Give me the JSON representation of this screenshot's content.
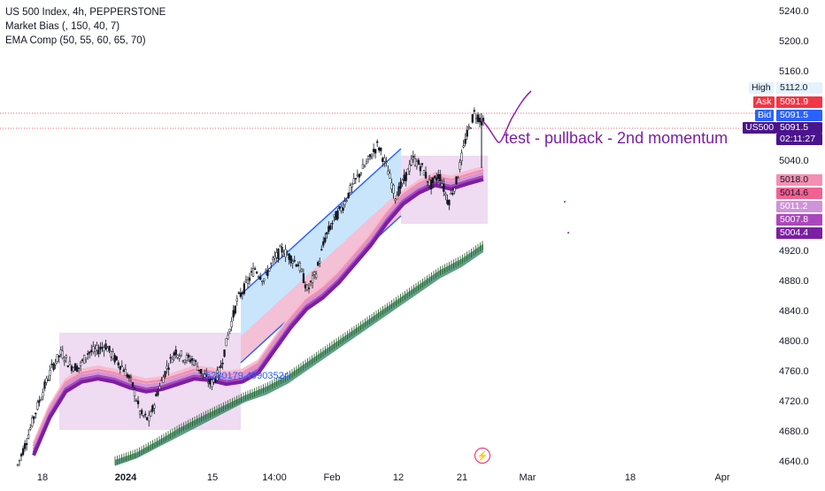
{
  "legend": {
    "title": "US 500 Index, 4h, PEPPERSTONE",
    "indicator1": "Market Bias (, 150, 40, 7)",
    "indicator2": "EMA Comp (50, 55, 60, 65, 70)"
  },
  "annotation": "test - pullback - 2nd momentum",
  "ema_label": "5280179,49903524",
  "colors": {
    "up": "#131722",
    "down": "#131722",
    "ema_main": "#8e24aa",
    "ema_light": "#f48fb1",
    "bias_green": "#2e7d5b",
    "box_fill": "#e1bee7",
    "channel_blue": "#2962ff",
    "channel_red": "#f8bbd0",
    "ask": "#f23645",
    "bid": "#2962ff",
    "purple": "#4a148c"
  },
  "price_tags": {
    "high": {
      "label": "High",
      "value": "5112.0"
    },
    "ask": {
      "label": "Ask",
      "value": "5091.9"
    },
    "bid": {
      "label": "Bid",
      "value": "5091.5"
    },
    "symbol": {
      "label": "US500",
      "value": "5091.5",
      "countdown": "02:11:27"
    },
    "ema_values": [
      "5018.0",
      "5014.6",
      "5011.2",
      "5007.8",
      "5004.4"
    ]
  },
  "logo": "⚡",
  "chart_data": {
    "type": "candlestick",
    "title": "US 500 Index, 4h, PEPPERSTONE",
    "y_ticks": [
      5240.0,
      5200.0,
      5160.0,
      5040.0,
      4920.0,
      4880.0,
      4840.0,
      4800.0,
      4760.0,
      4720.0,
      4680.0,
      4640.0
    ],
    "ylim": [
      4630,
      5255
    ],
    "x_ticks": [
      {
        "label": "18",
        "bold": false
      },
      {
        "label": "2024",
        "bold": true
      },
      {
        "label": "15",
        "bold": false
      },
      {
        "label": "14:00",
        "bold": false
      },
      {
        "label": "Feb",
        "bold": false
      },
      {
        "label": "12",
        "bold": false
      },
      {
        "label": "21",
        "bold": false
      },
      {
        "label": "Mar",
        "bold": false
      },
      {
        "label": "18",
        "bold": false
      },
      {
        "label": "Apr",
        "bold": false
      }
    ],
    "price_path": [
      [
        4630,
        4640
      ],
      [
        4660,
        4675
      ],
      [
        4700,
        4710
      ],
      [
        4730,
        4745
      ],
      [
        4760,
        4775
      ],
      [
        4780,
        4790
      ],
      [
        4765,
        4770
      ],
      [
        4760,
        4770
      ],
      [
        4780,
        4790
      ],
      [
        4785,
        4790
      ],
      [
        4790,
        4800
      ],
      [
        4775,
        4780
      ],
      [
        4760,
        4770
      ],
      [
        4740,
        4750
      ],
      [
        4700,
        4705
      ],
      [
        4690,
        4700
      ],
      [
        4730,
        4740
      ],
      [
        4760,
        4770
      ],
      [
        4780,
        4795
      ],
      [
        4775,
        4780
      ],
      [
        4770,
        4780
      ],
      [
        4755,
        4760
      ],
      [
        4740,
        4745
      ],
      [
        4755,
        4765
      ],
      [
        4800,
        4820
      ],
      [
        4850,
        4860
      ],
      [
        4870,
        4880
      ],
      [
        4890,
        4905
      ],
      [
        4880,
        4885
      ],
      [
        4900,
        4910
      ],
      [
        4920,
        4925
      ],
      [
        4910,
        4915
      ],
      [
        4900,
        4905
      ],
      [
        4870,
        4865
      ],
      [
        4890,
        4895
      ],
      [
        4930,
        4945
      ],
      [
        4960,
        4965
      ],
      [
        4975,
        4985
      ],
      [
        5000,
        5010
      ],
      [
        5020,
        5030
      ],
      [
        5040,
        5045
      ],
      [
        5060,
        5065
      ],
      [
        5030,
        5035
      ],
      [
        4990,
        4995
      ],
      [
        5010,
        5020
      ],
      [
        5040,
        5045
      ],
      [
        5030,
        5035
      ],
      [
        5010,
        5005
      ],
      [
        5020,
        5025
      ],
      [
        4990,
        4980
      ],
      [
        5010,
        5020
      ],
      [
        5060,
        5080
      ],
      [
        5100,
        5110
      ],
      [
        5090,
        5092
      ]
    ],
    "ema_path": [
      [
        4650,
        4658
      ],
      [
        4700,
        4708
      ],
      [
        4735,
        4742
      ],
      [
        4748,
        4752
      ],
      [
        4752,
        4754
      ],
      [
        4748,
        4750
      ],
      [
        4740,
        4742
      ],
      [
        4735,
        4735
      ],
      [
        4738,
        4740
      ],
      [
        4745,
        4747
      ],
      [
        4752,
        4754
      ],
      [
        4750,
        4752
      ],
      [
        4745,
        4745
      ],
      [
        4748,
        4750
      ],
      [
        4760,
        4765
      ],
      [
        4790,
        4800
      ],
      [
        4820,
        4830
      ],
      [
        4845,
        4855
      ],
      [
        4860,
        4868
      ],
      [
        4880,
        4890
      ],
      [
        4905,
        4915
      ],
      [
        4930,
        4945
      ],
      [
        4960,
        4975
      ],
      [
        4985,
        4995
      ],
      [
        5000,
        5005
      ],
      [
        5010,
        5010
      ],
      [
        5005,
        5005
      ],
      [
        5012,
        5015
      ],
      [
        5018,
        5020
      ]
    ],
    "bias_path": [
      [
        4640,
        4642
      ],
      [
        4650,
        4652
      ],
      [
        4665,
        4668
      ],
      [
        4680,
        4685
      ],
      [
        4695,
        4700
      ],
      [
        4710,
        4714
      ],
      [
        4725,
        4728
      ],
      [
        4735,
        4740
      ],
      [
        4750,
        4755
      ],
      [
        4770,
        4775
      ],
      [
        4790,
        4795
      ],
      [
        4810,
        4815
      ],
      [
        4830,
        4835
      ],
      [
        4850,
        4855
      ],
      [
        4870,
        4875
      ],
      [
        4890,
        4895
      ],
      [
        4905,
        4910
      ],
      [
        4925,
        4930
      ]
    ],
    "boxes": [
      {
        "name": "range-box-1",
        "y_top": 4805,
        "y_bottom": 4680
      },
      {
        "name": "range-box-2",
        "y_top": 5050,
        "y_bottom": 4980
      }
    ]
  }
}
